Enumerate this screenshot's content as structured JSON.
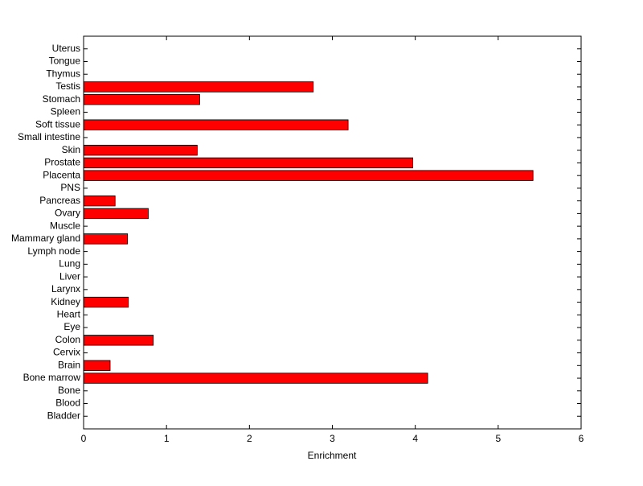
{
  "chart_data": {
    "type": "barh",
    "categories": [
      "Bladder",
      "Blood",
      "Bone",
      "Bone marrow",
      "Brain",
      "Cervix",
      "Colon",
      "Eye",
      "Heart",
      "Kidney",
      "Larynx",
      "Liver",
      "Lung",
      "Lymph node",
      "Mammary gland",
      "Muscle",
      "Ovary",
      "Pancreas",
      "PNS",
      "Placenta",
      "Prostate",
      "Skin",
      "Small intestine",
      "Soft tissue",
      "Spleen",
      "Stomach",
      "Testis",
      "Thymus",
      "Tongue",
      "Uterus"
    ],
    "values": [
      0,
      0,
      0,
      4.15,
      0.32,
      0,
      0.84,
      0,
      0,
      0.54,
      0,
      0,
      0,
      0,
      0.53,
      0,
      0.78,
      0.38,
      0,
      5.42,
      3.97,
      1.37,
      0,
      3.19,
      0,
      1.4,
      2.77,
      0,
      0,
      0
    ],
    "color": "#ff0000",
    "xlabel": "Enrichment",
    "xlim": [
      0,
      6
    ],
    "xticks": [
      0,
      1,
      2,
      3,
      4,
      5,
      6
    ]
  }
}
